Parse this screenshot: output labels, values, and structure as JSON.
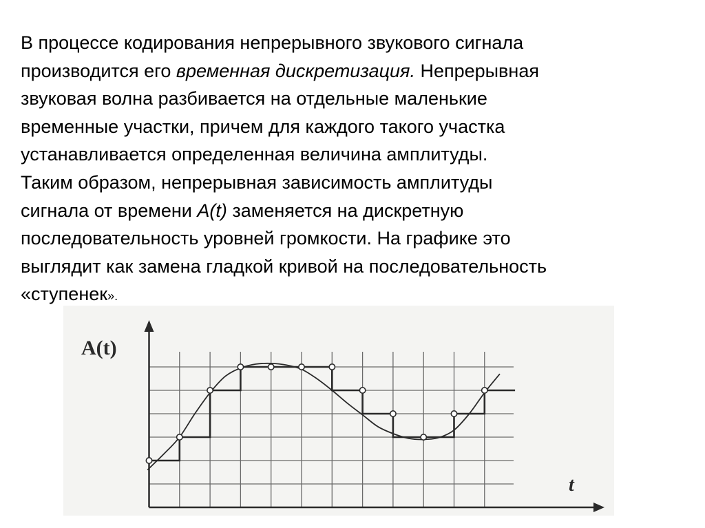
{
  "paragraph": {
    "lines": [
      [
        {
          "t": "В процессе кодирования непрерывного звукового сигнала"
        }
      ],
      [
        {
          "t": "производится его "
        },
        {
          "t": "временная дискретизация.",
          "i": true
        },
        {
          "t": " Непрерывная"
        }
      ],
      [
        {
          "t": "звуковая волна разбивается на отдельные маленькие"
        }
      ],
      [
        {
          "t": "временные участки, причем для каждого такого участка"
        }
      ],
      [
        {
          "t": "устанавливается определенная величина амплитуды."
        }
      ],
      [
        {
          "t": "Таким образом, непрерывная зависимость амплитуды"
        }
      ],
      [
        {
          "t": "сигнала от времени "
        },
        {
          "t": "A(t)",
          "i": true
        },
        {
          "t": " заменяется на дискретную"
        }
      ],
      [
        {
          "t": "последовательность уровней громкости. На графике это"
        }
      ],
      [
        {
          "t": "выглядит как замена гладкой кривой на последовательность"
        }
      ],
      [
        {
          "t": "«ступенек"
        },
        {
          "t": "».",
          "s": true
        }
      ]
    ]
  },
  "diagram": {
    "y_label": "A(t)",
    "x_label": "t",
    "colors": {
      "ink": "#2a2a2a",
      "grid": "#6a6a6a",
      "background": "#f4f4f2"
    },
    "chart_data": {
      "type": "line",
      "xlim": [
        0,
        12
      ],
      "ylim": [
        0,
        6
      ],
      "grid": true,
      "samples": {
        "x": [
          0,
          1,
          2,
          3,
          4,
          5,
          6,
          7,
          8,
          9,
          10,
          11
        ],
        "y": [
          2,
          3,
          5,
          6,
          6,
          6,
          6,
          5,
          4,
          3,
          4,
          5
        ]
      },
      "steps": [
        [
          0,
          1,
          2
        ],
        [
          1,
          2,
          3
        ],
        [
          2,
          3,
          5
        ],
        [
          3,
          6,
          6
        ],
        [
          6,
          7,
          5
        ],
        [
          7,
          8,
          4
        ],
        [
          8,
          10,
          3
        ],
        [
          10,
          11,
          4
        ],
        [
          11,
          12,
          5
        ]
      ],
      "curve": {
        "x": [
          -0.05,
          0.5,
          1,
          1.5,
          2,
          2.5,
          3,
          3.5,
          4,
          4.5,
          5,
          5.5,
          6,
          6.5,
          7,
          7.5,
          8,
          8.5,
          9,
          9.5,
          10,
          10.5,
          11,
          11.5
        ],
        "y": [
          1.6,
          2.3,
          3,
          4,
          4.9,
          5.6,
          5.95,
          6.12,
          6.15,
          6.08,
          5.9,
          5.5,
          5.0,
          4.45,
          3.95,
          3.45,
          3.15,
          2.95,
          2.9,
          2.98,
          3.3,
          4.0,
          4.9,
          5.7
        ]
      }
    }
  }
}
